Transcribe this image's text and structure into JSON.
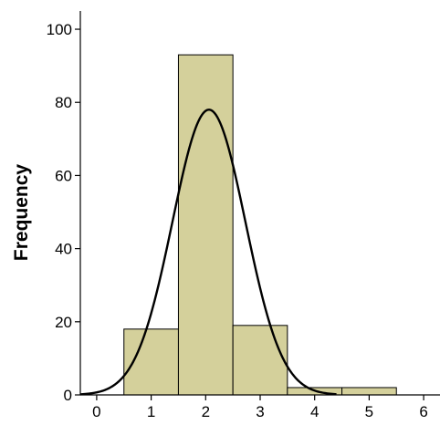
{
  "chart_data": {
    "type": "bar",
    "subtype": "histogram-with-normal-curve",
    "title": "",
    "xlabel": "",
    "ylabel": "Frequency",
    "xlim": [
      -0.3,
      6.3
    ],
    "ylim": [
      0,
      105
    ],
    "x_ticks": [
      0,
      1,
      2,
      3,
      4,
      5,
      6
    ],
    "y_ticks": [
      0,
      20,
      40,
      60,
      80,
      100
    ],
    "bins": [
      {
        "start": 0.5,
        "end": 1.5,
        "value": 18
      },
      {
        "start": 1.5,
        "end": 2.5,
        "value": 93
      },
      {
        "start": 2.5,
        "end": 3.5,
        "value": 19
      },
      {
        "start": 3.5,
        "end": 4.5,
        "value": 2
      },
      {
        "start": 4.5,
        "end": 5.5,
        "value": 2
      }
    ],
    "normal_curve": {
      "mean": 2.06,
      "sd": 0.67,
      "peak": 78,
      "x_from": -0.3,
      "x_to": 4.4
    },
    "grid": false,
    "bar_color": "#d4d09b",
    "edge_color": "#000000",
    "curve_color": "#000000"
  }
}
